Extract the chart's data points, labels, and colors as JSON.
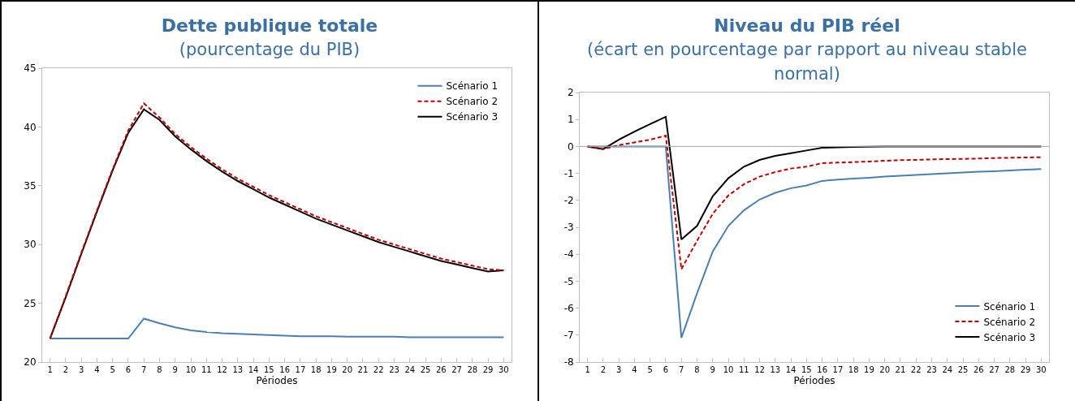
{
  "chart_data": [
    {
      "type": "line",
      "title": "Dette publique totale",
      "subtitle": "(pourcentage du PIB)",
      "xlabel": "Périodes",
      "x": [
        1,
        2,
        3,
        4,
        5,
        6,
        7,
        8,
        9,
        10,
        11,
        12,
        13,
        14,
        15,
        16,
        17,
        18,
        19,
        20,
        21,
        22,
        23,
        24,
        25,
        26,
        27,
        28,
        29,
        30
      ],
      "xlim": [
        0.5,
        30.5
      ],
      "xticks": [
        1,
        2,
        3,
        4,
        5,
        6,
        7,
        8,
        9,
        10,
        11,
        12,
        13,
        14,
        15,
        16,
        17,
        18,
        19,
        20,
        21,
        22,
        23,
        24,
        25,
        26,
        27,
        28,
        29,
        30
      ],
      "ylim": [
        20,
        45
      ],
      "yticks": [
        20,
        25,
        30,
        35,
        40,
        45
      ],
      "grid": false,
      "legend": "top right",
      "series": [
        {
          "name": "Scénario 1",
          "color": "#4a7fb5",
          "line_style": "solid",
          "values": [
            22,
            22,
            22,
            22,
            22,
            22,
            23.7,
            23.3,
            22.95,
            22.7,
            22.55,
            22.45,
            22.4,
            22.35,
            22.3,
            22.25,
            22.2,
            22.2,
            22.2,
            22.15,
            22.15,
            22.15,
            22.15,
            22.1,
            22.1,
            22.1,
            22.1,
            22.1,
            22.1,
            22.1
          ]
        },
        {
          "name": "Scénario 2",
          "color": "#c00000",
          "line_style": "dashed",
          "values": [
            22,
            25.6,
            29.3,
            32.9,
            36.4,
            39.7,
            42.0,
            40.8,
            39.4,
            38.3,
            37.3,
            36.4,
            35.6,
            34.9,
            34.2,
            33.6,
            33.0,
            32.4,
            31.9,
            31.4,
            30.9,
            30.4,
            30.0,
            29.6,
            29.2,
            28.8,
            28.5,
            28.2,
            27.9,
            27.8
          ]
        },
        {
          "name": "Scénario 3",
          "color": "#000000",
          "line_style": "solid",
          "values": [
            22,
            25.5,
            29.2,
            32.8,
            36.3,
            39.5,
            41.5,
            40.6,
            39.2,
            38.1,
            37.1,
            36.2,
            35.4,
            34.7,
            34.0,
            33.4,
            32.8,
            32.2,
            31.7,
            31.2,
            30.7,
            30.2,
            29.8,
            29.4,
            29.0,
            28.6,
            28.3,
            28.0,
            27.7,
            27.8
          ]
        }
      ]
    },
    {
      "type": "line",
      "title": "Niveau du PIB réel",
      "subtitle": "(écart en pourcentage par rapport au niveau stable normal)",
      "xlabel": "Périodes",
      "x": [
        1,
        2,
        3,
        4,
        5,
        6,
        7,
        8,
        9,
        10,
        11,
        12,
        13,
        14,
        15,
        16,
        17,
        18,
        19,
        20,
        21,
        22,
        23,
        24,
        25,
        26,
        27,
        28,
        29,
        30
      ],
      "xlim": [
        0.5,
        30.5
      ],
      "xticks": [
        1,
        2,
        3,
        4,
        5,
        6,
        7,
        8,
        9,
        10,
        11,
        12,
        13,
        14,
        15,
        16,
        17,
        18,
        19,
        20,
        21,
        22,
        23,
        24,
        25,
        26,
        27,
        28,
        29,
        30
      ],
      "ylim": [
        -8,
        2
      ],
      "yticks": [
        -8,
        -7,
        -6,
        -5,
        -4,
        -3,
        -2,
        -1,
        0,
        1,
        2
      ],
      "grid": false,
      "legend": "bottom right",
      "ref_lines": [
        {
          "axis": "y",
          "value": 0,
          "color": "#a6a6a6"
        }
      ],
      "series": [
        {
          "name": "Scénario 1",
          "color": "#4a7fb5",
          "line_style": "solid",
          "values": [
            0,
            0,
            0,
            0,
            0,
            0,
            -7.1,
            -5.45,
            -3.9,
            -2.95,
            -2.37,
            -1.97,
            -1.72,
            -1.55,
            -1.45,
            -1.28,
            -1.23,
            -1.19,
            -1.16,
            -1.12,
            -1.09,
            -1.06,
            -1.03,
            -1.0,
            -0.97,
            -0.94,
            -0.92,
            -0.89,
            -0.86,
            -0.84
          ]
        },
        {
          "name": "Scénario 2",
          "color": "#c00000",
          "line_style": "dashed",
          "values": [
            0,
            -0.1,
            0.05,
            0.15,
            0.25,
            0.4,
            -4.55,
            -3.5,
            -2.5,
            -1.82,
            -1.4,
            -1.12,
            -0.95,
            -0.82,
            -0.75,
            -0.62,
            -0.6,
            -0.58,
            -0.56,
            -0.53,
            -0.51,
            -0.5,
            -0.48,
            -0.47,
            -0.46,
            -0.45,
            -0.43,
            -0.42,
            -0.41,
            -0.4
          ]
        },
        {
          "name": "Scénario 3",
          "color": "#000000",
          "line_style": "solid",
          "values": [
            0,
            -0.1,
            0.25,
            0.55,
            0.83,
            1.1,
            -3.45,
            -2.95,
            -1.85,
            -1.18,
            -0.75,
            -0.5,
            -0.35,
            -0.25,
            -0.15,
            -0.05,
            -0.03,
            -0.02,
            -0.01,
            0,
            0,
            0,
            0,
            0,
            0,
            0,
            0,
            0,
            0,
            0
          ]
        }
      ]
    }
  ]
}
